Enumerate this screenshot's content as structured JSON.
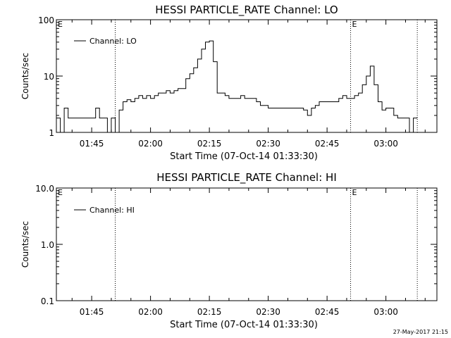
{
  "chart_data": [
    {
      "type": "line",
      "title": "HESSI PARTICLE_RATE Channel: LO",
      "xlabel": "Start Time (07-Oct-14 01:33:30)",
      "ylabel": "Counts/sec",
      "yscale": "log",
      "ylim": [
        1,
        100
      ],
      "xlim": [
        "01:36",
        "03:13"
      ],
      "xticks": [
        "01:45",
        "02:00",
        "02:15",
        "02:30",
        "02:45",
        "03:00"
      ],
      "yticks": [
        "1",
        "10",
        "100"
      ],
      "legend": {
        "placement": "top-left",
        "label": "Channel: LO"
      },
      "flags": [
        {
          "label": "E",
          "time": "01:36"
        },
        {
          "label": "E",
          "time": "02:51"
        }
      ],
      "dotted_lines": [
        "01:51",
        "02:51",
        "03:08"
      ],
      "series": [
        {
          "x": [
            "01:36",
            "01:37",
            "01:38",
            "01:39",
            "01:40",
            "01:41",
            "01:42",
            "01:43",
            "01:44",
            "01:45",
            "01:46",
            "01:47",
            "01:48",
            "01:49",
            "01:50",
            "01:51",
            "01:52",
            "01:53",
            "01:54",
            "01:55",
            "01:56",
            "01:57",
            "01:58",
            "01:59",
            "02:00",
            "02:01",
            "02:02",
            "02:03",
            "02:04",
            "02:05",
            "02:06",
            "02:07",
            "02:08",
            "02:09",
            "02:10",
            "02:11",
            "02:12",
            "02:13",
            "02:14",
            "02:15",
            "02:16",
            "02:17",
            "02:18",
            "02:19",
            "02:20",
            "02:21",
            "02:22",
            "02:23",
            "02:24",
            "02:25",
            "02:26",
            "02:27",
            "02:28",
            "02:29",
            "02:30",
            "02:31",
            "02:32",
            "02:33",
            "02:34",
            "02:35",
            "02:36",
            "02:37",
            "02:38",
            "02:39",
            "02:40",
            "02:41",
            "02:42",
            "02:43",
            "02:44",
            "02:45",
            "02:46",
            "02:47",
            "02:48",
            "02:49",
            "02:50",
            "02:51",
            "02:52",
            "02:53",
            "02:54",
            "02:55",
            "02:56",
            "02:57",
            "02:58",
            "02:59",
            "03:00",
            "03:01",
            "03:02",
            "03:03",
            "03:04",
            "03:05",
            "03:06",
            "03:07"
          ],
          "values": [
            1.8,
            1.0,
            2.7,
            1.8,
            1.8,
            1.8,
            1.8,
            1.8,
            1.8,
            1.8,
            2.7,
            1.8,
            1.8,
            1.0,
            1.8,
            1.0,
            2.5,
            3.5,
            3.8,
            3.5,
            4.0,
            4.5,
            4.0,
            4.5,
            4.0,
            4.5,
            5.0,
            5.0,
            5.5,
            5.0,
            5.5,
            6.0,
            6.0,
            9.0,
            11,
            14,
            20,
            30,
            40,
            42,
            18,
            5.0,
            5.0,
            4.5,
            4.0,
            4.0,
            4.0,
            4.5,
            4.0,
            4.0,
            4.0,
            3.5,
            3.0,
            3.0,
            2.7,
            2.7,
            2.7,
            2.7,
            2.7,
            2.7,
            2.7,
            2.7,
            2.7,
            2.5,
            2.0,
            2.7,
            3.0,
            3.5,
            3.5,
            3.5,
            3.5,
            3.5,
            4.0,
            4.5,
            4.0,
            4.0,
            4.5,
            5.0,
            7.0,
            10,
            15,
            7.0,
            3.5,
            2.5,
            2.7,
            2.7,
            2.0,
            1.8,
            1.8,
            1.8,
            1.0,
            1.8
          ]
        }
      ]
    },
    {
      "type": "line",
      "title": "HESSI PARTICLE_RATE Channel: HI",
      "xlabel": "Start Time (07-Oct-14 01:33:30)",
      "ylabel": "Counts/sec",
      "yscale": "log",
      "ylim": [
        0.1,
        10
      ],
      "xlim": [
        "01:36",
        "03:13"
      ],
      "xticks": [
        "01:45",
        "02:00",
        "02:15",
        "02:30",
        "02:45",
        "03:00"
      ],
      "yticks": [
        "0.1",
        "1.0",
        "10.0"
      ],
      "legend": {
        "placement": "top-left",
        "label": "Channel: HI"
      },
      "flags": [
        {
          "label": "E",
          "time": "01:36"
        },
        {
          "label": "E",
          "time": "02:51"
        }
      ],
      "dotted_lines": [
        "01:51",
        "02:51",
        "03:08"
      ],
      "series": [
        {
          "x": [],
          "values": []
        }
      ]
    }
  ],
  "footer": {
    "timestamp": "27-May-2017 21:15"
  }
}
